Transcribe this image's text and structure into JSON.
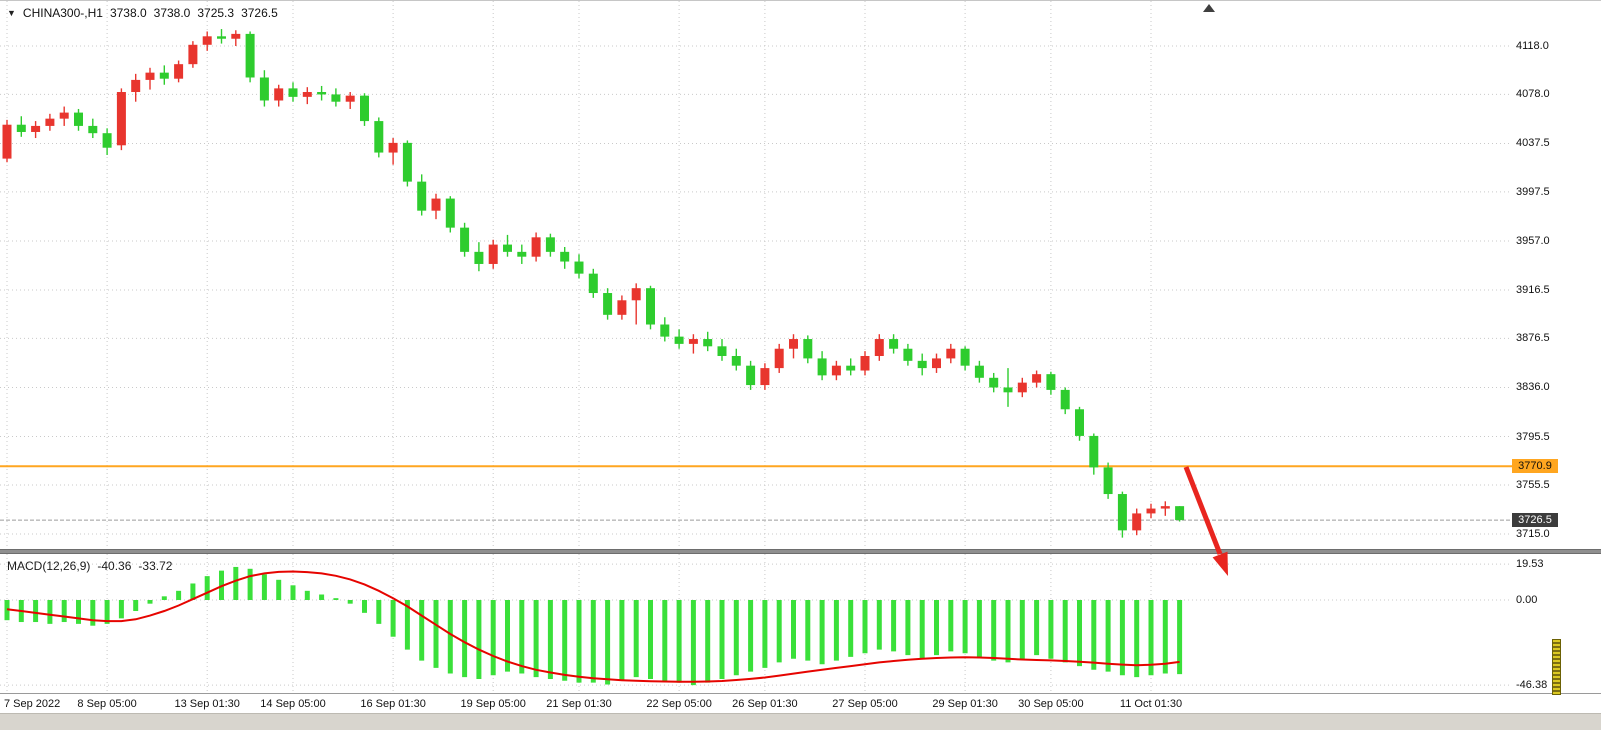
{
  "header": {
    "symbol": "CHINA300-,H1",
    "open": "3738.0",
    "high": "3738.0",
    "low": "3725.3",
    "close": "3726.5"
  },
  "indicator": {
    "name": "MACD(12,26,9)",
    "macd_value": "-40.36",
    "signal_value": "-33.72"
  },
  "price_axis": {
    "labels": [
      "4118.0",
      "4078.0",
      "4037.5",
      "3997.5",
      "3957.0",
      "3916.5",
      "3876.5",
      "3836.0",
      "3795.5",
      "3755.5",
      "3715.0"
    ],
    "badges": [
      {
        "text": "3770.9",
        "style": "orange"
      },
      {
        "text": "3726.5",
        "style": "dark"
      }
    ]
  },
  "macd_axis": {
    "labels": [
      "19.53",
      "0.00",
      "-46.38"
    ]
  },
  "time_axis": {
    "ticks": [
      {
        "label": "7 Sep 2022",
        "index": 0
      },
      {
        "label": "8 Sep 05:00",
        "index": 7
      },
      {
        "label": "13 Sep 01:30",
        "index": 14
      },
      {
        "label": "14 Sep 05:00",
        "index": 20
      },
      {
        "label": "16 Sep 01:30",
        "index": 27
      },
      {
        "label": "19 Sep 05:00",
        "index": 34
      },
      {
        "label": "21 Sep 01:30",
        "index": 40
      },
      {
        "label": "22 Sep 05:00",
        "index": 47
      },
      {
        "label": "26 Sep 01:30",
        "index": 53
      },
      {
        "label": "27 Sep 05:00",
        "index": 60
      },
      {
        "label": "29 Sep 01:30",
        "index": 67
      },
      {
        "label": "30 Sep 05:00",
        "index": 73
      },
      {
        "label": "11 Oct 01:30",
        "index": 80
      }
    ]
  },
  "colors": {
    "up_candle": "#e8352e",
    "down_candle": "#2ecc2e",
    "macd_histogram": "#3ae03a",
    "macd_signal": "#e60400",
    "orange_line": "#ffa620",
    "grid": "#c9c9c9",
    "current_price_line": "#9c9c9c",
    "arrow": "#e8251f",
    "badge_dark_bg": "#3c3c3c",
    "badge_orange_bg": "#ffa620"
  },
  "annotations": {
    "arrow": {
      "description": "red down-right trend arrow",
      "color": "#e8251f"
    }
  },
  "chart_data": [
    {
      "type": "candlestick",
      "symbol": "CHINA300-",
      "timeframe": "H1",
      "y_ticks": [
        4118.0,
        4078.0,
        4037.5,
        3997.5,
        3957.0,
        3916.5,
        3876.5,
        3836.0,
        3795.5,
        3755.5,
        3715.0
      ],
      "horizontal_line": 3770.9,
      "current_price": 3726.5,
      "candles": [
        [
          4025,
          4057,
          4022,
          4053
        ],
        [
          4053,
          4060,
          4043,
          4047
        ],
        [
          4047,
          4056,
          4042,
          4052
        ],
        [
          4052,
          4062,
          4048,
          4058
        ],
        [
          4058,
          4068,
          4052,
          4063
        ],
        [
          4063,
          4066,
          4048,
          4052
        ],
        [
          4052,
          4058,
          4042,
          4046
        ],
        [
          4046,
          4050,
          4028,
          4034
        ],
        [
          4036,
          4083,
          4032,
          4080
        ],
        [
          4080,
          4095,
          4072,
          4090
        ],
        [
          4090,
          4100,
          4082,
          4096
        ],
        [
          4096,
          4102,
          4086,
          4091
        ],
        [
          4091,
          4106,
          4088,
          4103
        ],
        [
          4103,
          4122,
          4100,
          4119
        ],
        [
          4119,
          4130,
          4114,
          4126
        ],
        [
          4126,
          4132,
          4120,
          4124
        ],
        [
          4124,
          4131,
          4118,
          4128
        ],
        [
          4128,
          4130,
          4088,
          4092
        ],
        [
          4092,
          4098,
          4068,
          4073
        ],
        [
          4073,
          4086,
          4068,
          4083
        ],
        [
          4083,
          4088,
          4072,
          4076
        ],
        [
          4076,
          4084,
          4070,
          4080
        ],
        [
          4080,
          4085,
          4073,
          4078
        ],
        [
          4078,
          4083,
          4068,
          4072
        ],
        [
          4072,
          4080,
          4066,
          4077
        ],
        [
          4077,
          4079,
          4052,
          4056
        ],
        [
          4056,
          4059,
          4026,
          4030
        ],
        [
          4030,
          4042,
          4020,
          4038
        ],
        [
          4038,
          4040,
          4002,
          4006
        ],
        [
          4006,
          4012,
          3978,
          3982
        ],
        [
          3982,
          3996,
          3975,
          3992
        ],
        [
          3992,
          3994,
          3964,
          3968
        ],
        [
          3968,
          3972,
          3944,
          3948
        ],
        [
          3948,
          3956,
          3932,
          3938
        ],
        [
          3938,
          3958,
          3934,
          3954
        ],
        [
          3954,
          3962,
          3944,
          3948
        ],
        [
          3948,
          3954,
          3938,
          3944
        ],
        [
          3944,
          3964,
          3940,
          3960
        ],
        [
          3960,
          3963,
          3944,
          3948
        ],
        [
          3948,
          3952,
          3934,
          3940
        ],
        [
          3940,
          3946,
          3926,
          3930
        ],
        [
          3930,
          3934,
          3910,
          3914
        ],
        [
          3914,
          3918,
          3892,
          3896
        ],
        [
          3896,
          3912,
          3892,
          3908
        ],
        [
          3908,
          3922,
          3888,
          3918
        ],
        [
          3918,
          3920,
          3884,
          3888
        ],
        [
          3888,
          3894,
          3874,
          3878
        ],
        [
          3878,
          3884,
          3868,
          3872
        ],
        [
          3872,
          3880,
          3864,
          3876
        ],
        [
          3876,
          3882,
          3866,
          3870
        ],
        [
          3870,
          3876,
          3858,
          3862
        ],
        [
          3862,
          3868,
          3850,
          3854
        ],
        [
          3854,
          3858,
          3834,
          3838
        ],
        [
          3838,
          3856,
          3834,
          3852
        ],
        [
          3852,
          3872,
          3848,
          3868
        ],
        [
          3868,
          3880,
          3860,
          3876
        ],
        [
          3876,
          3879,
          3856,
          3860
        ],
        [
          3860,
          3866,
          3842,
          3846
        ],
        [
          3846,
          3858,
          3842,
          3854
        ],
        [
          3854,
          3860,
          3846,
          3850
        ],
        [
          3850,
          3866,
          3846,
          3862
        ],
        [
          3862,
          3880,
          3858,
          3876
        ],
        [
          3876,
          3880,
          3864,
          3868
        ],
        [
          3868,
          3872,
          3854,
          3858
        ],
        [
          3858,
          3864,
          3846,
          3852
        ],
        [
          3852,
          3864,
          3848,
          3860
        ],
        [
          3860,
          3872,
          3856,
          3868
        ],
        [
          3868,
          3870,
          3850,
          3854
        ],
        [
          3854,
          3858,
          3840,
          3844
        ],
        [
          3844,
          3848,
          3832,
          3836
        ],
        [
          3836,
          3852,
          3820,
          3832
        ],
        [
          3832,
          3844,
          3828,
          3840
        ],
        [
          3840,
          3850,
          3836,
          3847
        ],
        [
          3847,
          3849,
          3830,
          3834
        ],
        [
          3834,
          3836,
          3814,
          3818
        ],
        [
          3818,
          3820,
          3792,
          3796
        ],
        [
          3796,
          3798,
          3764,
          3770
        ],
        [
          3770,
          3774,
          3744,
          3748
        ],
        [
          3748,
          3750,
          3712,
          3718
        ],
        [
          3718,
          3736,
          3714,
          3732
        ],
        [
          3732,
          3740,
          3728,
          3736
        ],
        [
          3736,
          3742,
          3730,
          3738
        ],
        [
          3738,
          3738,
          3725.3,
          3726.5
        ]
      ]
    },
    {
      "type": "macd",
      "params": "12,26,9",
      "values": {
        "macd": -40.36,
        "signal": -33.72
      },
      "y_ticks": [
        19.53,
        0.0,
        -46.38
      ],
      "histogram": [
        -11,
        -12,
        -12,
        -13,
        -12,
        -13,
        -14,
        -13,
        -10,
        -6,
        -2,
        2,
        5,
        9,
        13,
        16,
        18,
        17,
        14,
        11,
        8,
        5,
        3,
        1,
        -2,
        -7,
        -13,
        -20,
        -27,
        -33,
        -37,
        -40,
        -42,
        -43,
        -41,
        -39,
        -40,
        -42,
        -43,
        -44,
        -45,
        -45,
        -46,
        -44,
        -42,
        -43,
        -44,
        -45,
        -46.38,
        -45,
        -43,
        -41,
        -39,
        -37,
        -34,
        -32,
        -33,
        -35,
        -33,
        -31,
        -29,
        -27,
        -28,
        -30,
        -32,
        -30,
        -28,
        -29,
        -31,
        -33,
        -34,
        -32,
        -30,
        -32,
        -34,
        -36,
        -38,
        -39,
        -41,
        -42,
        -41,
        -40,
        -40.36
      ],
      "signal_line": [
        -5,
        -6,
        -7,
        -8,
        -9,
        -10,
        -11,
        -11.5,
        -11.5,
        -10.5,
        -8.5,
        -6,
        -3,
        0.5,
        4,
        7.5,
        10.5,
        13,
        14.5,
        15.3,
        15.5,
        15.2,
        14.5,
        13.2,
        11.2,
        8.5,
        5,
        1,
        -3.5,
        -8.5,
        -13.5,
        -18.5,
        -23,
        -27,
        -30.5,
        -33.5,
        -36,
        -38,
        -39.5,
        -40.8,
        -41.8,
        -42.6,
        -43.2,
        -43.7,
        -44,
        -44.2,
        -44.4,
        -44.5,
        -44.5,
        -44.4,
        -44.1,
        -43.6,
        -43,
        -42.2,
        -41.2,
        -40.1,
        -39,
        -38,
        -37,
        -36,
        -35,
        -34,
        -33.2,
        -32.5,
        -32,
        -31.6,
        -31.3,
        -31.2,
        -31.3,
        -31.6,
        -32,
        -32.4,
        -32.7,
        -32.9,
        -33.2,
        -33.6,
        -34.1,
        -34.7,
        -35.2,
        -35.5,
        -35.3,
        -34.7,
        -33.72
      ]
    }
  ]
}
